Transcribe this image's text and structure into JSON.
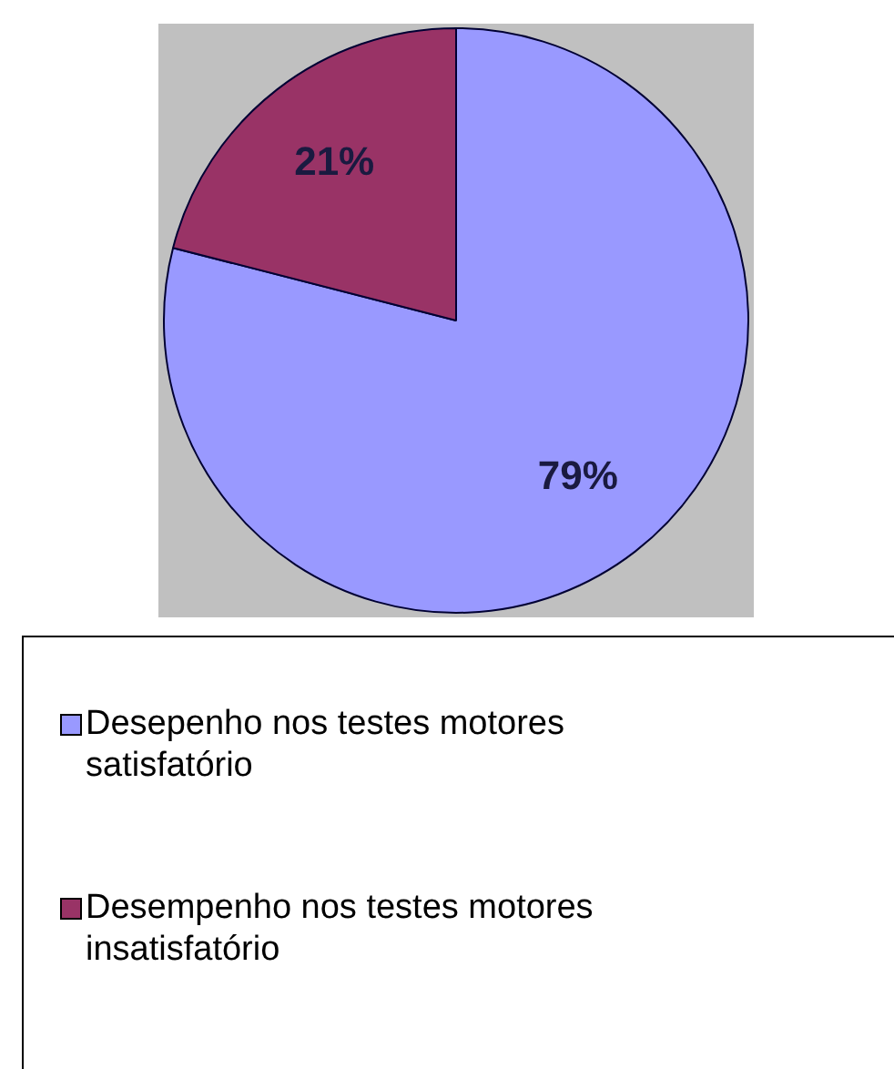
{
  "chart_data": {
    "type": "pie",
    "categories": [
      "Desepenho nos testes motores satisfatório",
      "Desempenho nos testes motores insatisfatório"
    ],
    "values": [
      79,
      21
    ],
    "colors": [
      "#9999ff",
      "#993366"
    ],
    "value_labels": [
      "79%",
      "21%"
    ],
    "legend": "bottom"
  }
}
